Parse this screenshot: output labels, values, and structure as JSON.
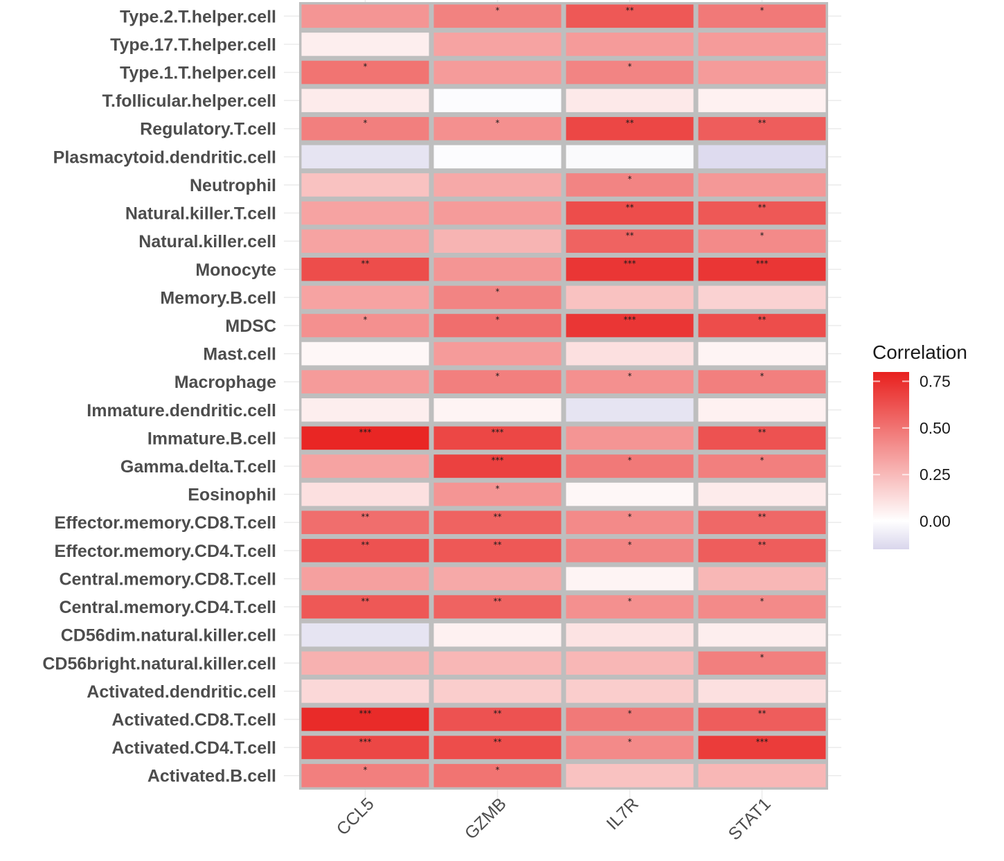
{
  "chart_data": {
    "type": "heatmap",
    "title": "",
    "xlabel": "",
    "ylabel": "",
    "x": [
      "CCL5",
      "GZMB",
      "IL7R",
      "STAT1"
    ],
    "y": [
      "Type.2.T.helper.cell",
      "Type.17.T.helper.cell",
      "Type.1.T.helper.cell",
      "T.follicular.helper.cell",
      "Regulatory.T.cell",
      "Plasmacytoid.dendritic.cell",
      "Neutrophil",
      "Natural.killer.T.cell",
      "Natural.killer.cell",
      "Monocyte",
      "Memory.B.cell",
      "MDSC",
      "Mast.cell",
      "Macrophage",
      "Immature.dendritic.cell",
      "Immature.B.cell",
      "Gamma.delta.T.cell",
      "Eosinophil",
      "Effector.memory.CD8.T.cell",
      "Effector.memory.CD4.T.cell",
      "Central.memory.CD8.T.cell",
      "Central.memory.CD4.T.cell",
      "CD56dim.natural.killer.cell",
      "CD56bright.natural.killer.cell",
      "Activated.dendritic.cell",
      "Activated.CD8.T.cell",
      "Activated.CD4.T.cell",
      "Activated.B.cell"
    ],
    "values": [
      [
        0.38,
        0.45,
        0.6,
        0.48
      ],
      [
        0.06,
        0.33,
        0.36,
        0.36
      ],
      [
        0.5,
        0.36,
        0.44,
        0.36
      ],
      [
        0.07,
        -0.01,
        0.08,
        0.05
      ],
      [
        0.46,
        0.4,
        0.66,
        0.58
      ],
      [
        -0.1,
        -0.01,
        -0.02,
        -0.13
      ],
      [
        0.22,
        0.31,
        0.44,
        0.37
      ],
      [
        0.33,
        0.36,
        0.64,
        0.6
      ],
      [
        0.33,
        0.27,
        0.56,
        0.42
      ],
      [
        0.64,
        0.38,
        0.72,
        0.72
      ],
      [
        0.33,
        0.44,
        0.22,
        0.16
      ],
      [
        0.4,
        0.52,
        0.72,
        0.64
      ],
      [
        0.03,
        0.36,
        0.11,
        0.04
      ],
      [
        0.36,
        0.46,
        0.4,
        0.46
      ],
      [
        0.06,
        0.04,
        -0.1,
        0.05
      ],
      [
        0.78,
        0.66,
        0.38,
        0.62
      ],
      [
        0.33,
        0.68,
        0.48,
        0.46
      ],
      [
        0.11,
        0.38,
        0.03,
        0.07
      ],
      [
        0.52,
        0.56,
        0.42,
        0.54
      ],
      [
        0.62,
        0.6,
        0.44,
        0.58
      ],
      [
        0.34,
        0.31,
        0.04,
        0.26
      ],
      [
        0.6,
        0.56,
        0.4,
        0.42
      ],
      [
        -0.1,
        0.05,
        0.1,
        0.06
      ],
      [
        0.28,
        0.26,
        0.26,
        0.46
      ],
      [
        0.14,
        0.18,
        0.18,
        0.11
      ],
      [
        0.76,
        0.62,
        0.48,
        0.58
      ],
      [
        0.66,
        0.64,
        0.42,
        0.7
      ],
      [
        0.46,
        0.5,
        0.22,
        0.26
      ]
    ],
    "significance": [
      [
        "",
        "*",
        "**",
        "*"
      ],
      [
        "",
        "",
        "",
        ""
      ],
      [
        "*",
        "",
        "*",
        ""
      ],
      [
        "",
        "",
        "",
        ""
      ],
      [
        "*",
        "*",
        "**",
        "**"
      ],
      [
        "",
        "",
        "",
        ""
      ],
      [
        "",
        "",
        "*",
        ""
      ],
      [
        "",
        "",
        "**",
        "**"
      ],
      [
        "",
        "",
        "**",
        "*"
      ],
      [
        "**",
        "",
        "***",
        "***"
      ],
      [
        "",
        "*",
        "",
        ""
      ],
      [
        "*",
        "*",
        "***",
        "**"
      ],
      [
        "",
        "",
        "",
        ""
      ],
      [
        "",
        "*",
        "*",
        "*"
      ],
      [
        "",
        "",
        "",
        ""
      ],
      [
        "***",
        "***",
        "",
        "**"
      ],
      [
        "",
        "***",
        "*",
        "*"
      ],
      [
        "",
        "*",
        "",
        ""
      ],
      [
        "**",
        "**",
        "*",
        "**"
      ],
      [
        "**",
        "**",
        "*",
        "**"
      ],
      [
        "",
        "",
        "",
        ""
      ],
      [
        "**",
        "**",
        "*",
        "*"
      ],
      [
        "",
        "",
        "",
        ""
      ],
      [
        "",
        "",
        "",
        "*"
      ],
      [
        "",
        "",
        "",
        ""
      ],
      [
        "***",
        "**",
        "*",
        "**"
      ],
      [
        "***",
        "**",
        "*",
        "***"
      ],
      [
        "*",
        "*",
        "",
        ""
      ]
    ],
    "color_scale": {
      "low": "#d9d6ec",
      "mid": "#ffffff",
      "high": "#e8201e",
      "midpoint": 0,
      "range": [
        -0.15,
        0.8
      ]
    },
    "legend": {
      "title": "Correlation",
      "ticks": [
        "0.75",
        "0.50",
        "0.25",
        "0.00"
      ],
      "tick_values": [
        0.75,
        0.5,
        0.25,
        0.0
      ],
      "placement": "right"
    },
    "grid": true,
    "cell_border_color": "#bebebe"
  }
}
